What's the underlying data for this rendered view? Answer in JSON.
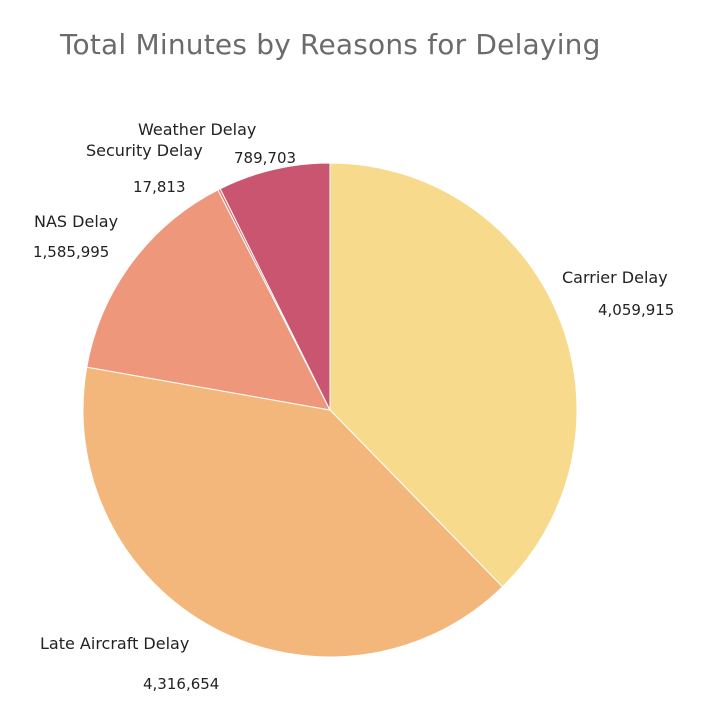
{
  "chart_data": {
    "type": "pie",
    "title": "Total Minutes by Reasons for Delaying",
    "slices": [
      {
        "label": "Carrier Delay",
        "value": 4059915,
        "value_label": "4,059,915",
        "color": "#F7DA8B"
      },
      {
        "label": "Late Aircraft Delay",
        "value": 4316654,
        "value_label": "4,316,654",
        "color": "#F3B77C"
      },
      {
        "label": "NAS Delay",
        "value": 1585995,
        "value_label": "1,585,995",
        "color": "#EF977A"
      },
      {
        "label": "Security Delay",
        "value": 17813,
        "value_label": "17,813",
        "color": "#E07470"
      },
      {
        "label": "Weather Delay",
        "value": 789703,
        "value_label": "789,703",
        "color": "#C95570"
      }
    ],
    "start_angle": "12 o'clock",
    "direction": "clockwise",
    "legend": "none"
  }
}
